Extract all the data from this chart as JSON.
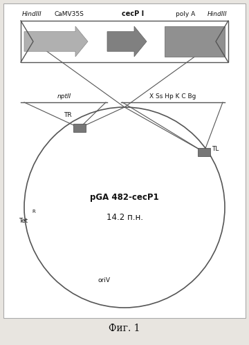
{
  "bg_color": "#ffffff",
  "outer_bg": "#e8e5e0",
  "title_text": "Фиг. 1",
  "plasmid_name": "pGA 482-cecP1",
  "plasmid_size": "14.2 п.н.",
  "oriV_label": "oriV",
  "TetR_label1": "Tet",
  "TetR_label2": "R",
  "TR_label": "TR",
  "TL_label": "TL",
  "nptII_label": "nptII",
  "restriction_label": "X Ss Hp K C Bg",
  "hindIII_left": "HindIII",
  "hindIII_right": "HindIII",
  "camv35s_label": "CaMV35S",
  "cecp_label": "cecP I",
  "polyA_label": "poly A",
  "text_color": "#111111",
  "line_color": "#555555",
  "font_size_main": 7.5,
  "font_size_small": 6.5,
  "font_size_title": 10
}
